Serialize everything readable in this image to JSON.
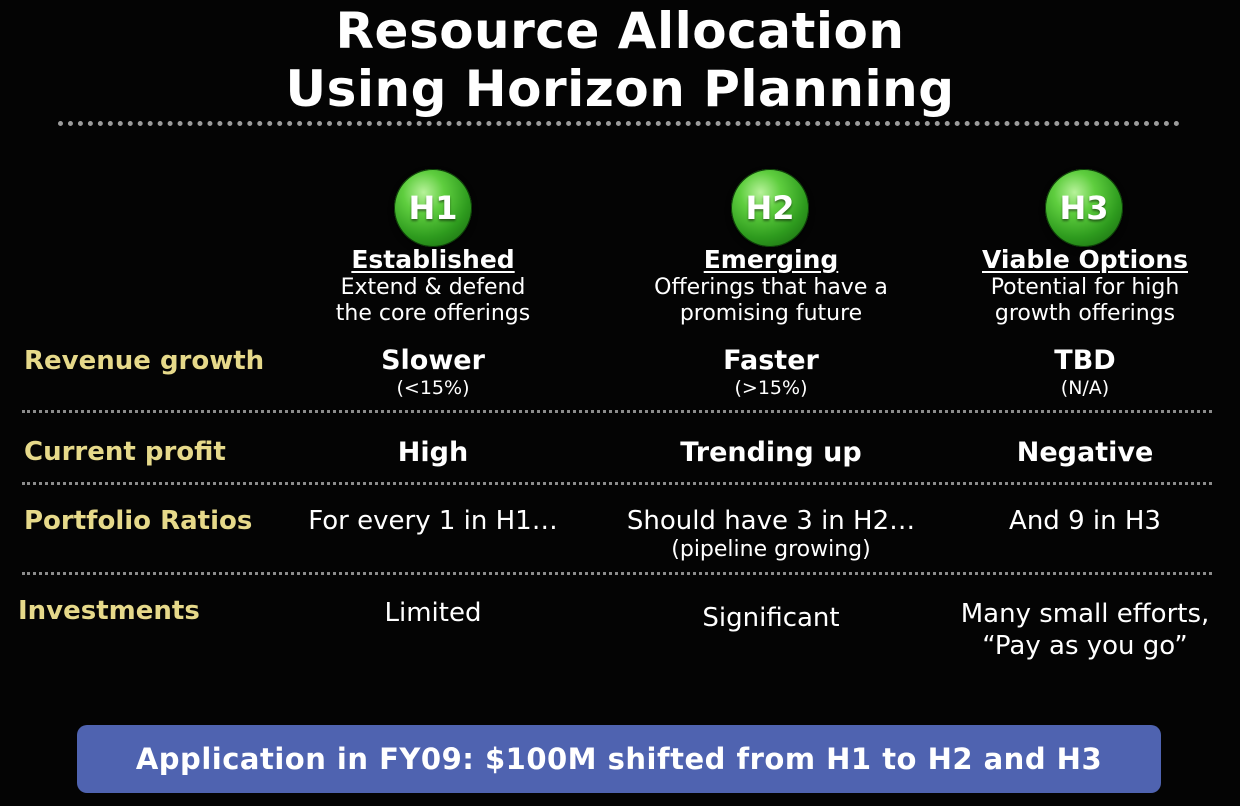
{
  "title": {
    "line1": "Resource Allocation",
    "line2": "Using Horizon Planning"
  },
  "horizons": [
    {
      "badge": "H1",
      "name": "Established",
      "desc_line1": "Extend & defend",
      "desc_line2": "the core offerings"
    },
    {
      "badge": "H2",
      "name": "Emerging",
      "desc_line1": "Offerings that have a",
      "desc_line2": "promising future"
    },
    {
      "badge": "H3",
      "name": "Viable Options",
      "desc_line1": "Potential for high",
      "desc_line2": "growth offerings"
    }
  ],
  "rows": {
    "revenue_growth": {
      "label": "Revenue growth",
      "values": [
        {
          "main": "Slower",
          "sub": "(<15%)"
        },
        {
          "main": "Faster",
          "sub": "(>15%)"
        },
        {
          "main": "TBD",
          "sub": "(N/A)"
        }
      ]
    },
    "current_profit": {
      "label": "Current profit",
      "values": [
        "High",
        "Trending up",
        "Negative"
      ]
    },
    "portfolio_ratios": {
      "label": "Portfolio Ratios",
      "values": [
        {
          "main": "For every 1 in H1…",
          "sub": ""
        },
        {
          "main": "Should have 3 in H2…",
          "sub": "(pipeline growing)"
        },
        {
          "main": "And 9 in H3",
          "sub": ""
        }
      ]
    },
    "investments": {
      "label": "Investments",
      "values": [
        {
          "line1": "Limited",
          "line2": ""
        },
        {
          "line1": "Significant",
          "line2": ""
        },
        {
          "line1": "Many small efforts,",
          "line2": "“Pay as you go”"
        }
      ]
    }
  },
  "application": "Application in FY09:  $100M shifted from H1 to H2 and H3",
  "colors": {
    "background": "#040404",
    "row_label": "#e6d98a",
    "badge_green": "#3fb02a",
    "application_bar": "#4f63b0"
  }
}
